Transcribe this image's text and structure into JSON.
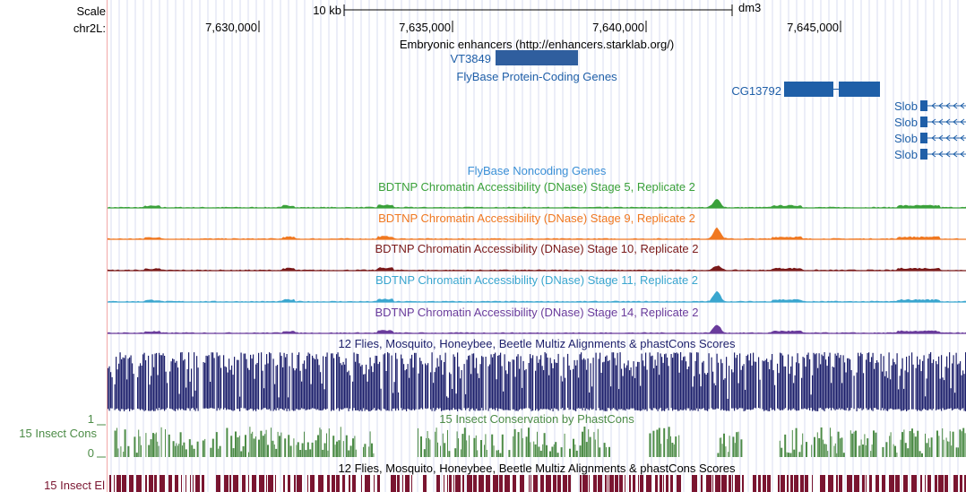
{
  "colors": {
    "guide": "#d9dcf2",
    "guide_lane": "#f2a8a8",
    "gene": "#1f5fa8",
    "enhancer": "#2f5e9e",
    "enhancer_label": "#1f5fa8",
    "protein_coding_label": "#1f5fa8",
    "noncoding_label": "#3a8fd6",
    "multiz": "#1c1f6b",
    "phastcons": "#4d8c47",
    "elements": "#7a1530"
  },
  "ruler": {
    "scale_label": "Scale",
    "chrom_label": "chr2L:",
    "scale_bar_label": "10 kb",
    "assembly": "dm3",
    "ticks": [
      "7,630,000",
      "7,635,000",
      "7,640,000",
      "7,645,000"
    ]
  },
  "tracks": {
    "enhancers": {
      "title": "Embryonic enhancers (http://enhancers.starklab.org/)",
      "item": "VT3849"
    },
    "protein_coding": {
      "title": "FlyBase Protein-Coding Genes",
      "genes": [
        {
          "name": "CG13792",
          "strand": "+"
        },
        {
          "name": "Slob",
          "strand": "-"
        },
        {
          "name": "Slob",
          "strand": "-"
        },
        {
          "name": "Slob",
          "strand": "-"
        },
        {
          "name": "Slob",
          "strand": "-"
        }
      ]
    },
    "noncoding": {
      "title": "FlyBase Noncoding Genes"
    },
    "dnase": [
      {
        "title": "BDTNP Chromatin Accessibility (DNase) Stage 5, Replicate 2",
        "color": "#3aa13a"
      },
      {
        "title": "BDTNP Chromatin Accessibility (DNase) Stage 9, Replicate 2",
        "color": "#f07820"
      },
      {
        "title": "BDTNP Chromatin Accessibility (DNase) Stage 10, Replicate 2",
        "color": "#7a1a1a"
      },
      {
        "title": "BDTNP Chromatin Accessibility (DNase) Stage 11, Replicate 2",
        "color": "#3aa6cf"
      },
      {
        "title": "BDTNP Chromatin Accessibility (DNase) Stage 14, Replicate 2",
        "color": "#6a3c9c"
      }
    ],
    "multiz": {
      "title": "12 Flies, Mosquito, Honeybee, Beetle Multiz Alignments & phastCons Scores"
    },
    "phastcons": {
      "title": "15 Insect Conservation by PhastCons",
      "side_label": "15 Insect Cons",
      "axis_max": "1",
      "axis_min": "0"
    },
    "elements": {
      "title": "12 Flies, Mosquito, Honeybee, Beetle Multiz Alignments & phastCons Scores",
      "side_label": "15 Insect El"
    }
  }
}
